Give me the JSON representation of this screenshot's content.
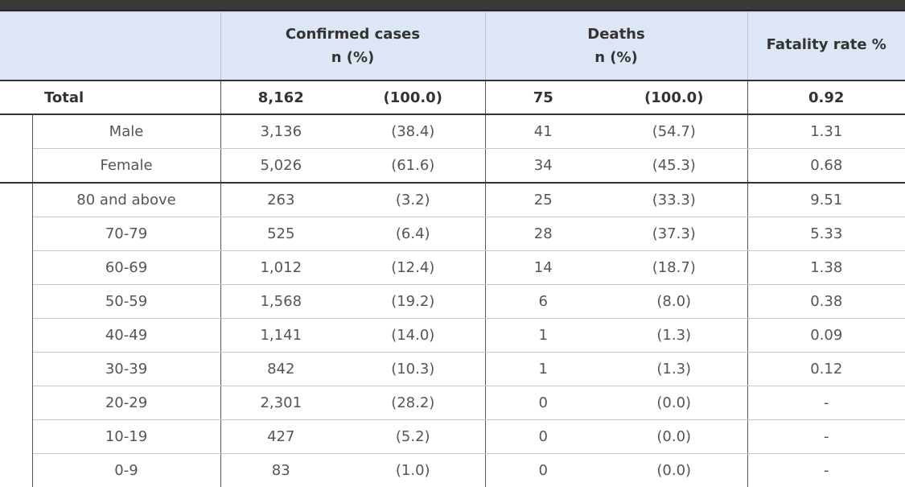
{
  "header": {
    "confirmed_title": "Confirmed cases",
    "deaths_title": "Deaths",
    "fatality_title": "Fatality rate %",
    "confirmed_sub": "n (%)",
    "deaths_sub": "n (%)"
  },
  "total": {
    "label": "Total",
    "confirmed_n": "8,162",
    "confirmed_pct": "(100.0)",
    "deaths_n": "75",
    "deaths_pct": "(100.0)",
    "fatality": "0.92"
  },
  "sex_rows": [
    {
      "label": "Male",
      "confirmed_n": "3,136",
      "confirmed_pct": "(38.4)",
      "deaths_n": "41",
      "deaths_pct": "(54.7)",
      "fatality": "1.31"
    },
    {
      "label": "Female",
      "confirmed_n": "5,026",
      "confirmed_pct": "(61.6)",
      "deaths_n": "34",
      "deaths_pct": "(45.3)",
      "fatality": "0.68"
    }
  ],
  "age_rows": [
    {
      "label": "80 and above",
      "confirmed_n": "263",
      "confirmed_pct": "(3.2)",
      "deaths_n": "25",
      "deaths_pct": "(33.3)",
      "fatality": "9.51"
    },
    {
      "label": "70-79",
      "confirmed_n": "525",
      "confirmed_pct": "(6.4)",
      "deaths_n": "28",
      "deaths_pct": "(37.3)",
      "fatality": "5.33"
    },
    {
      "label": "60-69",
      "confirmed_n": "1,012",
      "confirmed_pct": "(12.4)",
      "deaths_n": "14",
      "deaths_pct": "(18.7)",
      "fatality": "1.38"
    },
    {
      "label": "50-59",
      "confirmed_n": "1,568",
      "confirmed_pct": "(19.2)",
      "deaths_n": "6",
      "deaths_pct": "(8.0)",
      "fatality": "0.38"
    },
    {
      "label": "40-49",
      "confirmed_n": "1,141",
      "confirmed_pct": "(14.0)",
      "deaths_n": "1",
      "deaths_pct": "(1.3)",
      "fatality": "0.09"
    },
    {
      "label": "30-39",
      "confirmed_n": "842",
      "confirmed_pct": "(10.3)",
      "deaths_n": "1",
      "deaths_pct": "(1.3)",
      "fatality": "0.12"
    },
    {
      "label": "20-29",
      "confirmed_n": "2,301",
      "confirmed_pct": "(28.2)",
      "deaths_n": "0",
      "deaths_pct": "(0.0)",
      "fatality": "-"
    },
    {
      "label": "10-19",
      "confirmed_n": "427",
      "confirmed_pct": "(5.2)",
      "deaths_n": "0",
      "deaths_pct": "(0.0)",
      "fatality": "-"
    },
    {
      "label": "0-9",
      "confirmed_n": "83",
      "confirmed_pct": "(1.0)",
      "deaths_n": "0",
      "deaths_pct": "(0.0)",
      "fatality": "-"
    }
  ]
}
